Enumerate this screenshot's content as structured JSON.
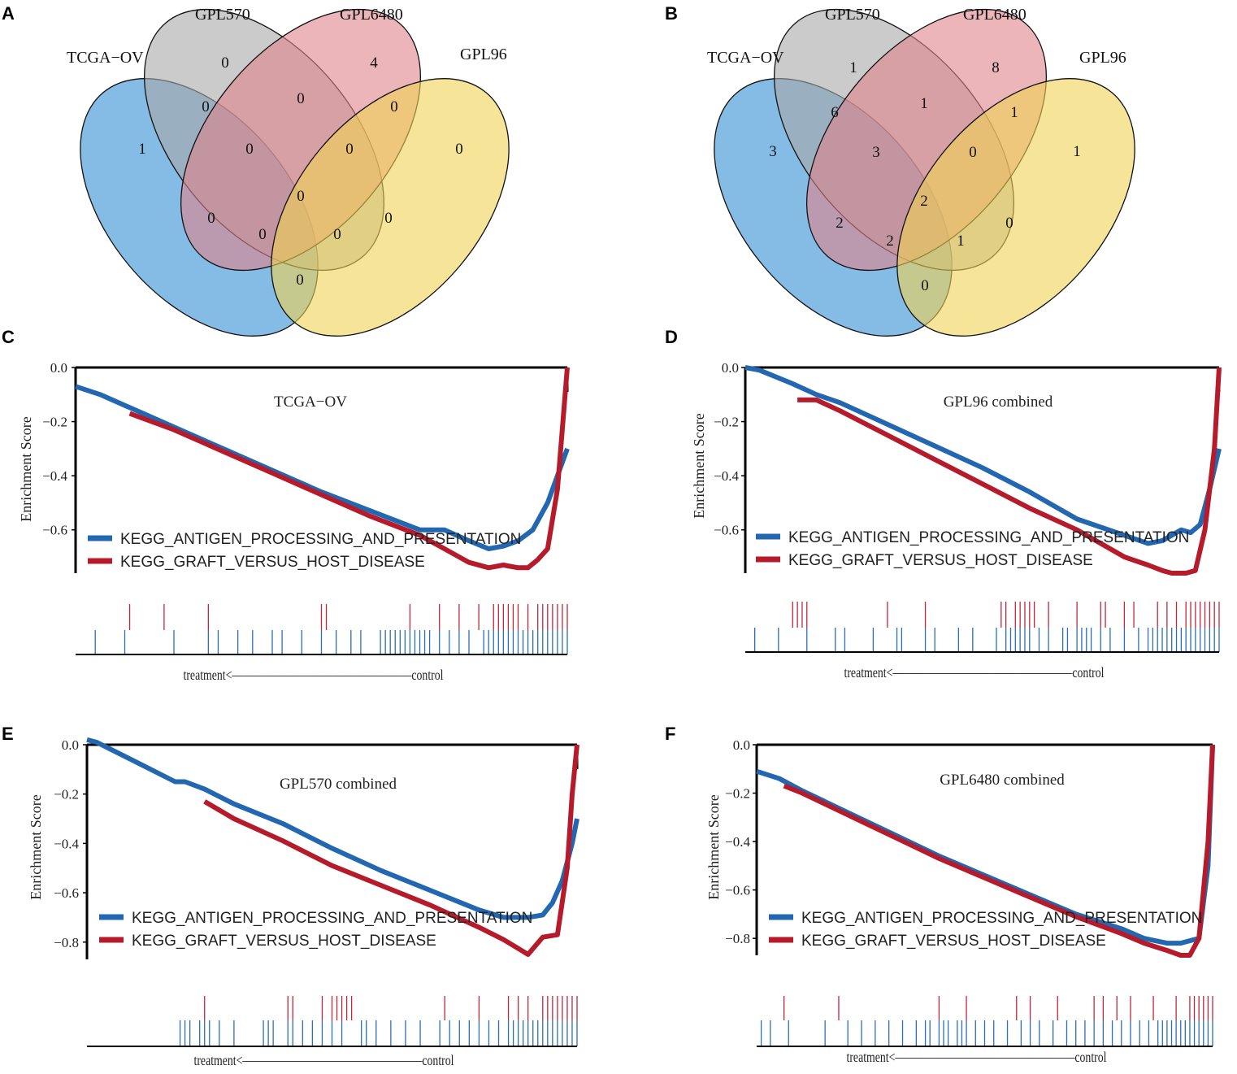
{
  "panels": [
    "A",
    "B",
    "C",
    "D",
    "E",
    "F"
  ],
  "venn": [
    {
      "panel": "A",
      "sets": [
        "TCGA−OV",
        "GPL570",
        "GPL6480",
        "GPL96"
      ],
      "counts": [
        "1",
        "0",
        "4",
        "0",
        "0",
        "0",
        "0",
        "0",
        "0",
        "0",
        "0",
        "0",
        "0",
        "0",
        "0"
      ]
    },
    {
      "panel": "B",
      "sets": [
        "TCGA−OV",
        "GPL570",
        "GPL6480",
        "GPL96"
      ],
      "counts": [
        "3",
        "1",
        "8",
        "1",
        "6",
        "1",
        "1",
        "3",
        "0",
        "2",
        "2",
        "2",
        "1",
        "0",
        "0"
      ]
    }
  ],
  "chart_data": [
    {
      "panel": "C",
      "type": "line",
      "title": "TCGA−OV",
      "ylabel": "Enrichment Score",
      "ylim": [
        -0.76,
        0.0
      ],
      "yticks": [
        "0.0",
        "−0.2",
        "−0.4",
        "−0.6"
      ],
      "xlabel": "treatment<————————————————control",
      "series": [
        {
          "name": "KEGG_ANTIGEN_PROCESSING_AND_PRESENTATION",
          "color": "#2367b0",
          "x": [
            0,
            0.05,
            0.1,
            0.2,
            0.3,
            0.4,
            0.5,
            0.6,
            0.7,
            0.75,
            0.8,
            0.84,
            0.87,
            0.9,
            0.93,
            0.96,
            0.98,
            1.0
          ],
          "y": [
            -0.07,
            -0.1,
            -0.14,
            -0.22,
            -0.3,
            -0.38,
            -0.46,
            -0.53,
            -0.6,
            -0.6,
            -0.64,
            -0.67,
            -0.66,
            -0.64,
            -0.6,
            -0.5,
            -0.4,
            -0.3
          ]
        },
        {
          "name": "KEGG_GRAFT_VERSUS_HOST_DISEASE",
          "color": "#b51b2a",
          "x": [
            0.11,
            0.2,
            0.3,
            0.4,
            0.5,
            0.6,
            0.7,
            0.75,
            0.8,
            0.84,
            0.87,
            0.9,
            0.92,
            0.94,
            0.96,
            0.98,
            1.0
          ],
          "y": [
            -0.17,
            -0.23,
            -0.31,
            -0.39,
            -0.47,
            -0.55,
            -0.62,
            -0.67,
            -0.72,
            -0.74,
            -0.73,
            -0.74,
            -0.74,
            -0.71,
            -0.67,
            -0.45,
            0.0
          ]
        }
      ],
      "hits_red": [
        0.11,
        0.18,
        0.27,
        0.5,
        0.51,
        0.68,
        0.74,
        0.78,
        0.82,
        0.85,
        0.86,
        0.87,
        0.88,
        0.89,
        0.9,
        0.92,
        0.94,
        0.95,
        0.96,
        0.97,
        0.98,
        0.99,
        1.0
      ],
      "hits_blue": [
        0.04,
        0.1,
        0.2,
        0.27,
        0.29,
        0.33,
        0.36,
        0.4,
        0.42,
        0.46,
        0.5,
        0.53,
        0.56,
        0.58,
        0.62,
        0.63,
        0.64,
        0.65,
        0.66,
        0.67,
        0.68,
        0.69,
        0.7,
        0.71,
        0.72,
        0.74,
        0.76,
        0.78,
        0.8,
        0.83,
        0.84,
        0.85,
        0.86,
        0.87,
        0.88,
        0.89,
        0.9,
        0.91,
        0.92,
        0.93,
        0.94,
        0.95,
        0.96,
        0.97,
        0.98,
        0.99,
        1.0
      ]
    },
    {
      "panel": "D",
      "type": "line",
      "title": "GPL96 combined",
      "ylabel": "Enrichment Score",
      "ylim": [
        -0.76,
        0.0
      ],
      "yticks": [
        "0.0",
        "−0.2",
        "−0.4",
        "−0.6"
      ],
      "xlabel": "treatment<————————————————control",
      "series": [
        {
          "name": "KEGG_ANTIGEN_PROCESSING_AND_PRESENTATION",
          "color": "#2367b0",
          "x": [
            0,
            0.03,
            0.1,
            0.15,
            0.2,
            0.3,
            0.4,
            0.5,
            0.6,
            0.7,
            0.8,
            0.85,
            0.88,
            0.9,
            0.92,
            0.94,
            0.96,
            0.98,
            1.0
          ],
          "y": [
            0.0,
            -0.01,
            -0.06,
            -0.1,
            -0.13,
            -0.21,
            -0.29,
            -0.37,
            -0.46,
            -0.56,
            -0.62,
            -0.65,
            -0.64,
            -0.62,
            -0.6,
            -0.61,
            -0.58,
            -0.45,
            -0.3
          ]
        },
        {
          "name": "KEGG_GRAFT_VERSUS_HOST_DISEASE",
          "color": "#b51b2a",
          "x": [
            0.11,
            0.15,
            0.2,
            0.3,
            0.4,
            0.5,
            0.6,
            0.7,
            0.75,
            0.8,
            0.85,
            0.88,
            0.9,
            0.93,
            0.95,
            0.97,
            0.99,
            1.0
          ],
          "y": [
            -0.12,
            -0.12,
            -0.16,
            -0.25,
            -0.34,
            -0.43,
            -0.52,
            -0.6,
            -0.65,
            -0.7,
            -0.73,
            -0.75,
            -0.76,
            -0.76,
            -0.75,
            -0.6,
            -0.3,
            0.0
          ]
        }
      ],
      "hits_red": [
        0.1,
        0.11,
        0.12,
        0.13,
        0.3,
        0.38,
        0.54,
        0.55,
        0.57,
        0.58,
        0.59,
        0.6,
        0.61,
        0.64,
        0.7,
        0.75,
        0.76,
        0.8,
        0.82,
        0.87,
        0.89,
        0.91,
        0.93,
        0.94,
        0.95,
        0.96,
        0.97,
        0.98,
        0.99,
        1.0
      ],
      "hits_blue": [
        0.02,
        0.07,
        0.13,
        0.19,
        0.21,
        0.27,
        0.32,
        0.33,
        0.38,
        0.4,
        0.45,
        0.48,
        0.53,
        0.55,
        0.56,
        0.57,
        0.58,
        0.59,
        0.6,
        0.62,
        0.64,
        0.67,
        0.68,
        0.7,
        0.71,
        0.72,
        0.73,
        0.75,
        0.77,
        0.8,
        0.83,
        0.85,
        0.86,
        0.87,
        0.88,
        0.89,
        0.9,
        0.91,
        0.92,
        0.93,
        0.94,
        0.95,
        0.96,
        0.97,
        0.98,
        0.99,
        1.0
      ]
    },
    {
      "panel": "E",
      "type": "line",
      "title": "GPL570 combined",
      "ylabel": "Enrichment Score",
      "ylim": [
        -0.87,
        0.0
      ],
      "yticks": [
        "0.0",
        "−0.2",
        "−0.4",
        "−0.6",
        "−0.8"
      ],
      "xlabel": "treatment<————————————————control",
      "series": [
        {
          "name": "KEGG_ANTIGEN_PROCESSING_AND_PRESENTATION",
          "color": "#2367b0",
          "x": [
            0,
            0.02,
            0.1,
            0.18,
            0.2,
            0.24,
            0.3,
            0.4,
            0.5,
            0.6,
            0.7,
            0.8,
            0.85,
            0.9,
            0.93,
            0.95,
            0.97,
            0.99,
            1.0
          ],
          "y": [
            0.02,
            0.01,
            -0.07,
            -0.15,
            -0.15,
            -0.18,
            -0.24,
            -0.32,
            -0.42,
            -0.51,
            -0.59,
            -0.67,
            -0.7,
            -0.7,
            -0.69,
            -0.64,
            -0.55,
            -0.4,
            -0.3
          ]
        },
        {
          "name": "KEGG_GRAFT_VERSUS_HOST_DISEASE",
          "color": "#b51b2a",
          "x": [
            0.24,
            0.3,
            0.4,
            0.5,
            0.6,
            0.7,
            0.8,
            0.85,
            0.9,
            0.93,
            0.96,
            0.98,
            0.99,
            1.0
          ],
          "y": [
            -0.23,
            -0.3,
            -0.39,
            -0.49,
            -0.57,
            -0.65,
            -0.74,
            -0.79,
            -0.85,
            -0.78,
            -0.77,
            -0.5,
            -0.2,
            0.0
          ]
        }
      ],
      "hits_red": [
        0.24,
        0.41,
        0.42,
        0.48,
        0.5,
        0.51,
        0.52,
        0.53,
        0.54,
        0.73,
        0.8,
        0.86,
        0.88,
        0.9,
        0.93,
        0.94,
        0.95,
        0.96,
        0.97,
        0.98,
        0.99,
        1.0
      ],
      "hits_blue": [
        0.19,
        0.2,
        0.21,
        0.23,
        0.24,
        0.25,
        0.27,
        0.3,
        0.36,
        0.37,
        0.38,
        0.41,
        0.42,
        0.44,
        0.46,
        0.48,
        0.5,
        0.52,
        0.56,
        0.57,
        0.59,
        0.62,
        0.65,
        0.68,
        0.72,
        0.74,
        0.76,
        0.78,
        0.8,
        0.82,
        0.84,
        0.86,
        0.87,
        0.88,
        0.89,
        0.9,
        0.91,
        0.92,
        0.93,
        0.94,
        0.95,
        0.96,
        0.97,
        0.98,
        0.99,
        1.0
      ]
    },
    {
      "panel": "F",
      "type": "line",
      "title": "GPL6480 combined",
      "ylabel": "Enrichment Score",
      "ylim": [
        -0.87,
        0.0
      ],
      "yticks": [
        "0.0",
        "−0.2",
        "−0.4",
        "−0.6",
        "−0.8"
      ],
      "xlabel": "treatment<————————————————control",
      "series": [
        {
          "name": "KEGG_ANTIGEN_PROCESSING_AND_PRESENTATION",
          "color": "#2367b0",
          "x": [
            0,
            0.05,
            0.1,
            0.2,
            0.3,
            0.4,
            0.5,
            0.6,
            0.7,
            0.8,
            0.85,
            0.9,
            0.93,
            0.95,
            0.97,
            0.99,
            1.0
          ],
          "y": [
            -0.11,
            -0.14,
            -0.19,
            -0.28,
            -0.37,
            -0.46,
            -0.54,
            -0.62,
            -0.7,
            -0.76,
            -0.8,
            -0.82,
            -0.82,
            -0.81,
            -0.8,
            -0.5,
            0.0
          ]
        },
        {
          "name": "KEGG_GRAFT_VERSUS_HOST_DISEASE",
          "color": "#b51b2a",
          "x": [
            0.06,
            0.1,
            0.2,
            0.3,
            0.4,
            0.5,
            0.6,
            0.7,
            0.8,
            0.85,
            0.9,
            0.93,
            0.95,
            0.97,
            0.99,
            1.0
          ],
          "y": [
            -0.17,
            -0.2,
            -0.29,
            -0.38,
            -0.47,
            -0.55,
            -0.63,
            -0.71,
            -0.78,
            -0.82,
            -0.85,
            -0.87,
            -0.87,
            -0.8,
            -0.4,
            0.0
          ]
        }
      ],
      "hits_red": [
        0.06,
        0.18,
        0.4,
        0.46,
        0.57,
        0.6,
        0.66,
        0.74,
        0.76,
        0.79,
        0.82,
        0.87,
        0.92,
        0.95,
        0.96,
        0.97,
        0.98,
        0.99,
        1.0
      ],
      "hits_blue": [
        0.01,
        0.03,
        0.07,
        0.15,
        0.2,
        0.23,
        0.26,
        0.29,
        0.32,
        0.35,
        0.37,
        0.38,
        0.4,
        0.41,
        0.42,
        0.44,
        0.45,
        0.46,
        0.48,
        0.5,
        0.52,
        0.55,
        0.58,
        0.6,
        0.62,
        0.65,
        0.68,
        0.7,
        0.72,
        0.74,
        0.76,
        0.78,
        0.8,
        0.82,
        0.84,
        0.86,
        0.88,
        0.89,
        0.9,
        0.91,
        0.92,
        0.93,
        0.94,
        0.95,
        0.96,
        0.97,
        0.98,
        0.99,
        1.0
      ]
    }
  ]
}
